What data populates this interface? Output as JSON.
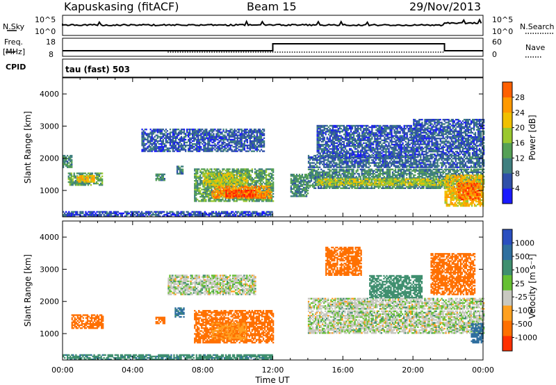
{
  "header": {
    "station": "Kapuskasing (fitACF)",
    "beam": "Beam 15",
    "date": "29/Nov/2013"
  },
  "strip": {
    "nsky_label": "N.Sky",
    "nsearch_label": "N.Search",
    "left_ticks": [
      "10^5",
      "10^0"
    ],
    "right_ticks": [
      "10^5",
      "10^0"
    ],
    "freq_label": "Freq.",
    "freq_unit": "[MHz]",
    "freq_ticks": [
      "18",
      "8"
    ],
    "nave_label": "Nave",
    "nave_ticks": [
      "60",
      "0"
    ],
    "cpid_label": "CPID",
    "cpid_text": "tau (fast) 503"
  },
  "colors": {
    "power": [
      "#1a1aff",
      "#2f4fa8",
      "#3f7f7f",
      "#55a055",
      "#9ac82e",
      "#f0c000",
      "#ff9900",
      "#ff6000",
      "#ff1a00"
    ],
    "velocity": [
      "#2a4fc0",
      "#2f6f9f",
      "#3f8f6f",
      "#66c033",
      "#c8c8c0",
      "#ffa020",
      "#ff7000",
      "#ff3000"
    ]
  },
  "chart_data": [
    {
      "type": "heatmap",
      "name": "power",
      "xlabel": "",
      "ylabel": "Slant Range [km]",
      "xlim": [
        "00:00",
        "24:00"
      ],
      "ylim": [
        180,
        4500
      ],
      "yticks": [
        1000,
        2000,
        3000,
        4000
      ],
      "colorbar": {
        "label": "Power [dB]",
        "ticks": [
          4,
          8,
          12,
          16,
          20,
          24,
          28
        ],
        "range": [
          0,
          32
        ]
      },
      "regions": [
        {
          "t0": 0.0,
          "t1": 0.5,
          "r0": 1700,
          "r1": 2100,
          "value": 10
        },
        {
          "t0": 0.3,
          "t1": 2.3,
          "r0": 1150,
          "r1": 1550,
          "value": 12
        },
        {
          "t0": 0.8,
          "t1": 1.8,
          "r0": 1250,
          "r1": 1450,
          "value": 20
        },
        {
          "t0": 5.3,
          "t1": 5.8,
          "r0": 1300,
          "r1": 1500,
          "value": 10
        },
        {
          "t0": 6.5,
          "t1": 6.9,
          "r0": 1500,
          "r1": 1750,
          "value": 8
        },
        {
          "t0": 7.5,
          "t1": 12.0,
          "r0": 650,
          "r1": 1650,
          "value": 12
        },
        {
          "t0": 8.5,
          "t1": 11.9,
          "r0": 750,
          "r1": 1150,
          "value": 24
        },
        {
          "t0": 9.3,
          "t1": 11.0,
          "r0": 800,
          "r1": 1000,
          "value": 28
        },
        {
          "t0": 8.0,
          "t1": 10.5,
          "r0": 1150,
          "r1": 1550,
          "value": 17
        },
        {
          "t0": 13.0,
          "t1": 14.0,
          "r0": 800,
          "r1": 1500,
          "value": 10
        },
        {
          "t0": 14.0,
          "t1": 24.0,
          "r0": 1050,
          "r1": 1650,
          "value": 10
        },
        {
          "t0": 14.5,
          "t1": 22.0,
          "r0": 1150,
          "r1": 1350,
          "value": 17
        },
        {
          "t0": 21.8,
          "t1": 24.0,
          "r0": 500,
          "r1": 1450,
          "value": 20
        },
        {
          "t0": 22.5,
          "t1": 23.8,
          "r0": 700,
          "r1": 1200,
          "value": 26
        },
        {
          "t0": 14.0,
          "t1": 24.0,
          "r0": 1700,
          "r1": 2100,
          "value": 7
        },
        {
          "t0": 4.5,
          "t1": 11.5,
          "r0": 2200,
          "r1": 2900,
          "value": 6
        },
        {
          "t0": 14.5,
          "t1": 20.0,
          "r0": 2000,
          "r1": 3000,
          "value": 6
        },
        {
          "t0": 20.0,
          "t1": 24.0,
          "r0": 2100,
          "r1": 3200,
          "value": 6
        },
        {
          "t0": 0.0,
          "t1": 12.0,
          "r0": 180,
          "r1": 350,
          "value": 5
        }
      ]
    },
    {
      "type": "heatmap",
      "name": "velocity",
      "xlabel": "Time UT",
      "ylabel": "Slant Range [km]",
      "xlim": [
        "00:00",
        "24:00"
      ],
      "ylim": [
        180,
        4500
      ],
      "xticks": [
        "00:00",
        "04:00",
        "08:00",
        "12:00",
        "16:00",
        "20:00",
        "00:00"
      ],
      "yticks": [
        1000,
        2000,
        3000,
        4000
      ],
      "colorbar": {
        "label": "Velocity [m s⁻¹]",
        "ticks": [
          1000,
          500,
          100,
          25,
          -25,
          -100,
          -500,
          -1000
        ]
      },
      "regions": [
        {
          "t0": 0.5,
          "t1": 2.3,
          "r0": 1150,
          "r1": 1600,
          "value": -180
        },
        {
          "t0": 5.3,
          "t1": 5.8,
          "r0": 1300,
          "r1": 1500,
          "value": -150
        },
        {
          "t0": 6.4,
          "t1": 6.9,
          "r0": 1500,
          "r1": 1800,
          "value": 120
        },
        {
          "t0": 7.5,
          "t1": 12.0,
          "r0": 700,
          "r1": 1700,
          "value": -140
        },
        {
          "t0": 8.5,
          "t1": 10.5,
          "r0": 800,
          "r1": 1300,
          "value": -90
        },
        {
          "t0": 14.0,
          "t1": 24.0,
          "r0": 1000,
          "r1": 1700,
          "value": 0
        },
        {
          "t0": 14.0,
          "t1": 24.0,
          "r0": 1750,
          "r1": 2100,
          "value": 0
        },
        {
          "t0": 6.0,
          "t1": 11.0,
          "r0": 2200,
          "r1": 2800,
          "value": 0
        },
        {
          "t0": 23.3,
          "t1": 24.0,
          "r0": 700,
          "r1": 1300,
          "value": 300
        },
        {
          "t0": 17.5,
          "t1": 20.5,
          "r0": 2100,
          "r1": 2800,
          "value": 60
        },
        {
          "t0": 21.0,
          "t1": 23.5,
          "r0": 2200,
          "r1": 3500,
          "value": -300
        },
        {
          "t0": 15.0,
          "t1": 17.0,
          "r0": 2800,
          "r1": 3700,
          "value": -200
        },
        {
          "t0": 0.0,
          "t1": 12.0,
          "r0": 180,
          "r1": 350,
          "value": 80
        }
      ]
    }
  ]
}
